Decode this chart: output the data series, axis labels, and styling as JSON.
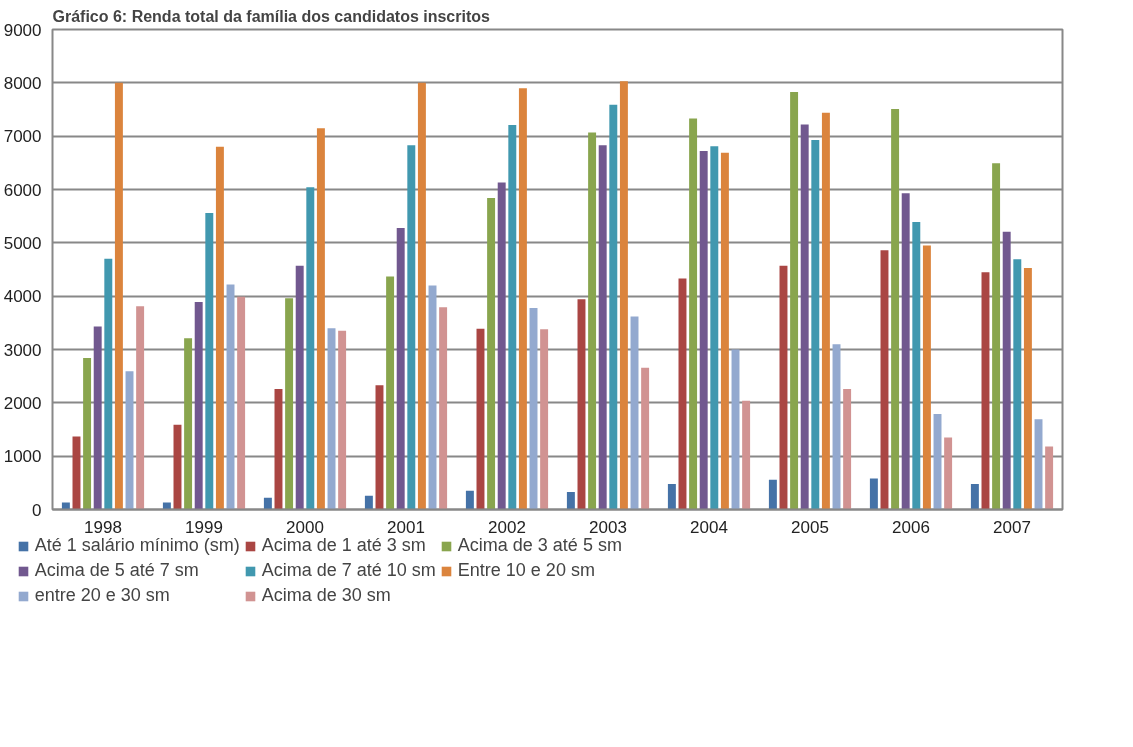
{
  "chart_data": {
    "type": "bar",
    "title": "Gráfico 6: Renda total da família dos candidatos inscritos",
    "categories": [
      "1998",
      "1999",
      "2000",
      "2001",
      "2002",
      "2003",
      "2004",
      "2005",
      "2006",
      "2007"
    ],
    "series": [
      {
        "name": "Até 1 salário mínimo (sm)",
        "color": "#4572a7",
        "values": [
          130,
          130,
          220,
          260,
          350,
          330,
          480,
          560,
          580,
          480
        ]
      },
      {
        "name": "Acima de 1 até 3 sm",
        "color": "#aa4643",
        "values": [
          1370,
          1590,
          2260,
          2330,
          3390,
          3940,
          4330,
          4570,
          4860,
          4450
        ]
      },
      {
        "name": "Acima de 3 até 5 sm",
        "color": "#89a54e",
        "values": [
          2840,
          3210,
          3960,
          4370,
          5840,
          7070,
          7330,
          7830,
          7510,
          6490
        ]
      },
      {
        "name": "Acima de 5 até 7 sm",
        "color": "#71588f",
        "values": [
          3430,
          3890,
          4570,
          5280,
          6130,
          6830,
          6720,
          7220,
          5930,
          5210
        ]
      },
      {
        "name": "Acima de 7 até 10 sm",
        "color": "#4198af",
        "values": [
          4700,
          5560,
          6040,
          6830,
          7210,
          7590,
          6810,
          6930,
          5390,
          4690
        ]
      },
      {
        "name": "Entre 10 e 20 sm",
        "color": "#db843d",
        "values": [
          8000,
          6800,
          7150,
          8000,
          7900,
          8030,
          6690,
          7440,
          4950,
          4530
        ]
      },
      {
        "name": "entre 20 e 30 sm",
        "color": "#93a9cf",
        "values": [
          2590,
          4220,
          3400,
          4200,
          3780,
          3620,
          3000,
          3100,
          1790,
          1690
        ]
      },
      {
        "name": "Acima de 30 sm",
        "color": "#d19392",
        "values": [
          3810,
          3990,
          3350,
          3790,
          3380,
          2660,
          2040,
          2260,
          1350,
          1180
        ]
      }
    ],
    "ylim": [
      0,
      9000
    ],
    "yticks": [
      0,
      1000,
      2000,
      3000,
      4000,
      5000,
      6000,
      7000,
      8000,
      9000
    ],
    "grid": "y",
    "legend": "bottom"
  }
}
